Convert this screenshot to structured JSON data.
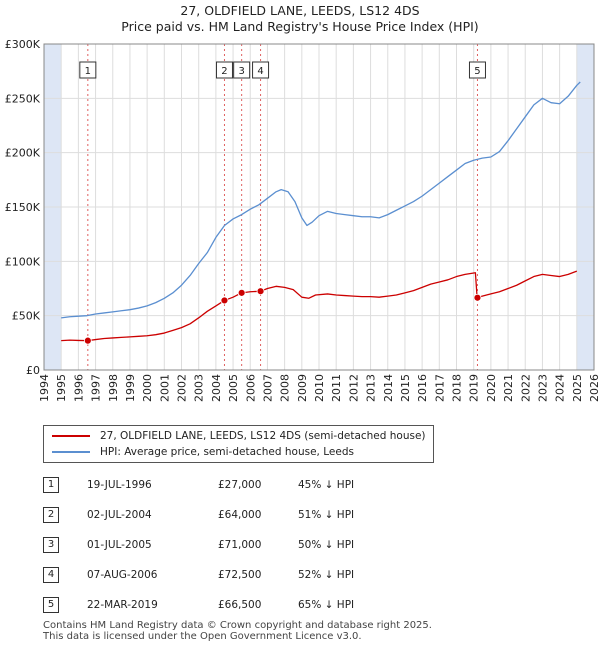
{
  "header": {
    "title": "27, OLDFIELD LANE, LEEDS, LS12 4DS",
    "subtitle": "Price paid vs. HM Land Registry's House Price Index (HPI)"
  },
  "colors": {
    "property": "#cc0000",
    "hpi": "#5b8fd0",
    "shade": "#dde6f5",
    "vline": "#e06060"
  },
  "chart_data": {
    "type": "line",
    "title": "27, OLDFIELD LANE, LEEDS, LS12 4DS",
    "subtitle": "Price paid vs. HM Land Registry's House Price Index (HPI)",
    "xlim": [
      1994,
      2026
    ],
    "ylim": [
      0,
      300000
    ],
    "x_ticks": [
      1994,
      1995,
      1996,
      1997,
      1998,
      1999,
      2000,
      2001,
      2002,
      2003,
      2004,
      2005,
      2006,
      2007,
      2008,
      2009,
      2010,
      2011,
      2012,
      2013,
      2014,
      2015,
      2016,
      2017,
      2018,
      2019,
      2020,
      2021,
      2022,
      2023,
      2024,
      2025,
      2026
    ],
    "y_ticks": [
      {
        "value": 0,
        "label": "£0"
      },
      {
        "value": 50000,
        "label": "£50K"
      },
      {
        "value": 100000,
        "label": "£100K"
      },
      {
        "value": 150000,
        "label": "£150K"
      },
      {
        "value": 200000,
        "label": "£200K"
      },
      {
        "value": 250000,
        "label": "£250K"
      },
      {
        "value": 300000,
        "label": "£300K"
      }
    ],
    "shaded_ranges": [
      [
        1994,
        1995
      ],
      [
        2025,
        2026
      ]
    ],
    "series": [
      {
        "name": "27, OLDFIELD LANE, LEEDS, LS12 4DS (semi-detached house)",
        "color": "#cc0000",
        "points": [
          [
            1995.0,
            27000
          ],
          [
            1995.5,
            27500
          ],
          [
            1996.0,
            27200
          ],
          [
            1996.55,
            27000
          ],
          [
            1997.0,
            28000
          ],
          [
            1997.5,
            29000
          ],
          [
            1998.0,
            29500
          ],
          [
            1998.5,
            30000
          ],
          [
            1999.0,
            30500
          ],
          [
            1999.5,
            31000
          ],
          [
            2000.0,
            31500
          ],
          [
            2000.5,
            32500
          ],
          [
            2001.0,
            34000
          ],
          [
            2001.5,
            36500
          ],
          [
            2002.0,
            39000
          ],
          [
            2002.5,
            42500
          ],
          [
            2003.0,
            48000
          ],
          [
            2003.5,
            54000
          ],
          [
            2004.0,
            59000
          ],
          [
            2004.5,
            64000
          ],
          [
            2005.0,
            67000
          ],
          [
            2005.5,
            71000
          ],
          [
            2006.0,
            72000
          ],
          [
            2006.6,
            72500
          ],
          [
            2007.0,
            75000
          ],
          [
            2007.5,
            77000
          ],
          [
            2008.0,
            76000
          ],
          [
            2008.5,
            74000
          ],
          [
            2009.0,
            67000
          ],
          [
            2009.4,
            66000
          ],
          [
            2009.8,
            69000
          ],
          [
            2010.5,
            70000
          ],
          [
            2011.0,
            69000
          ],
          [
            2011.5,
            68500
          ],
          [
            2012.0,
            68000
          ],
          [
            2012.5,
            67500
          ],
          [
            2013.0,
            67500
          ],
          [
            2013.5,
            67000
          ],
          [
            2014.0,
            68000
          ],
          [
            2014.5,
            69000
          ],
          [
            2015.0,
            71000
          ],
          [
            2015.5,
            73000
          ],
          [
            2016.0,
            76000
          ],
          [
            2016.5,
            79000
          ],
          [
            2017.0,
            81000
          ],
          [
            2017.5,
            83000
          ],
          [
            2018.0,
            86000
          ],
          [
            2018.5,
            88000
          ],
          [
            2019.1,
            89500
          ],
          [
            2019.2,
            66500
          ],
          [
            2019.5,
            68000
          ],
          [
            2020.0,
            70000
          ],
          [
            2020.5,
            72000
          ],
          [
            2021.0,
            75000
          ],
          [
            2021.5,
            78000
          ],
          [
            2022.0,
            82000
          ],
          [
            2022.5,
            86000
          ],
          [
            2023.0,
            88000
          ],
          [
            2023.5,
            87000
          ],
          [
            2024.0,
            86000
          ],
          [
            2024.5,
            88000
          ],
          [
            2025.0,
            91000
          ]
        ]
      },
      {
        "name": "HPI: Average price, semi-detached house, Leeds",
        "color": "#5b8fd0",
        "points": [
          [
            1995.0,
            48000
          ],
          [
            1995.5,
            49000
          ],
          [
            1996.0,
            49500
          ],
          [
            1996.5,
            50000
          ],
          [
            1997.0,
            51500
          ],
          [
            1997.5,
            52500
          ],
          [
            1998.0,
            53500
          ],
          [
            1998.5,
            54500
          ],
          [
            1999.0,
            55500
          ],
          [
            1999.5,
            57000
          ],
          [
            2000.0,
            59000
          ],
          [
            2000.5,
            62000
          ],
          [
            2001.0,
            66000
          ],
          [
            2001.5,
            71000
          ],
          [
            2002.0,
            78000
          ],
          [
            2002.5,
            87000
          ],
          [
            2003.0,
            98000
          ],
          [
            2003.5,
            108000
          ],
          [
            2004.0,
            122000
          ],
          [
            2004.5,
            133000
          ],
          [
            2005.0,
            139000
          ],
          [
            2005.5,
            143000
          ],
          [
            2006.0,
            148000
          ],
          [
            2006.5,
            152000
          ],
          [
            2007.0,
            158000
          ],
          [
            2007.5,
            164000
          ],
          [
            2007.8,
            166000
          ],
          [
            2008.2,
            164000
          ],
          [
            2008.6,
            155000
          ],
          [
            2009.0,
            140000
          ],
          [
            2009.3,
            133000
          ],
          [
            2009.6,
            136000
          ],
          [
            2010.0,
            142000
          ],
          [
            2010.5,
            146000
          ],
          [
            2011.0,
            144000
          ],
          [
            2011.5,
            143000
          ],
          [
            2012.0,
            142000
          ],
          [
            2012.5,
            141000
          ],
          [
            2013.0,
            141000
          ],
          [
            2013.5,
            140000
          ],
          [
            2014.0,
            143000
          ],
          [
            2014.5,
            147000
          ],
          [
            2015.0,
            151000
          ],
          [
            2015.5,
            155000
          ],
          [
            2016.0,
            160000
          ],
          [
            2016.5,
            166000
          ],
          [
            2017.0,
            172000
          ],
          [
            2017.5,
            178000
          ],
          [
            2018.0,
            184000
          ],
          [
            2018.5,
            190000
          ],
          [
            2019.0,
            193000
          ],
          [
            2019.5,
            195000
          ],
          [
            2020.0,
            196000
          ],
          [
            2020.5,
            201000
          ],
          [
            2021.0,
            211000
          ],
          [
            2021.5,
            222000
          ],
          [
            2022.0,
            233000
          ],
          [
            2022.5,
            244000
          ],
          [
            2023.0,
            250000
          ],
          [
            2023.5,
            246000
          ],
          [
            2024.0,
            245000
          ],
          [
            2024.5,
            252000
          ],
          [
            2025.0,
            262000
          ],
          [
            2025.2,
            265000
          ]
        ]
      }
    ],
    "sales": [
      {
        "num": "1",
        "year": 1996.55,
        "price": 27000
      },
      {
        "num": "2",
        "year": 2004.5,
        "price": 64000
      },
      {
        "num": "3",
        "year": 2005.5,
        "price": 71000
      },
      {
        "num": "4",
        "year": 2006.6,
        "price": 72500
      },
      {
        "num": "5",
        "year": 2019.22,
        "price": 66500
      }
    ]
  },
  "legend": {
    "property_label": "27, OLDFIELD LANE, LEEDS, LS12 4DS (semi-detached house)",
    "hpi_label": "HPI: Average price, semi-detached house, Leeds"
  },
  "sales_table": [
    {
      "num": "1",
      "date": "19-JUL-1996",
      "price": "£27,000",
      "hpi": "45% ↓ HPI"
    },
    {
      "num": "2",
      "date": "02-JUL-2004",
      "price": "£64,000",
      "hpi": "51% ↓ HPI"
    },
    {
      "num": "3",
      "date": "01-JUL-2005",
      "price": "£71,000",
      "hpi": "50% ↓ HPI"
    },
    {
      "num": "4",
      "date": "07-AUG-2006",
      "price": "£72,500",
      "hpi": "52% ↓ HPI"
    },
    {
      "num": "5",
      "date": "22-MAR-2019",
      "price": "£66,500",
      "hpi": "65% ↓ HPI"
    }
  ],
  "footer": {
    "line1": "Contains HM Land Registry data © Crown copyright and database right 2025.",
    "line2": "This data is licensed under the Open Government Licence v3.0."
  }
}
